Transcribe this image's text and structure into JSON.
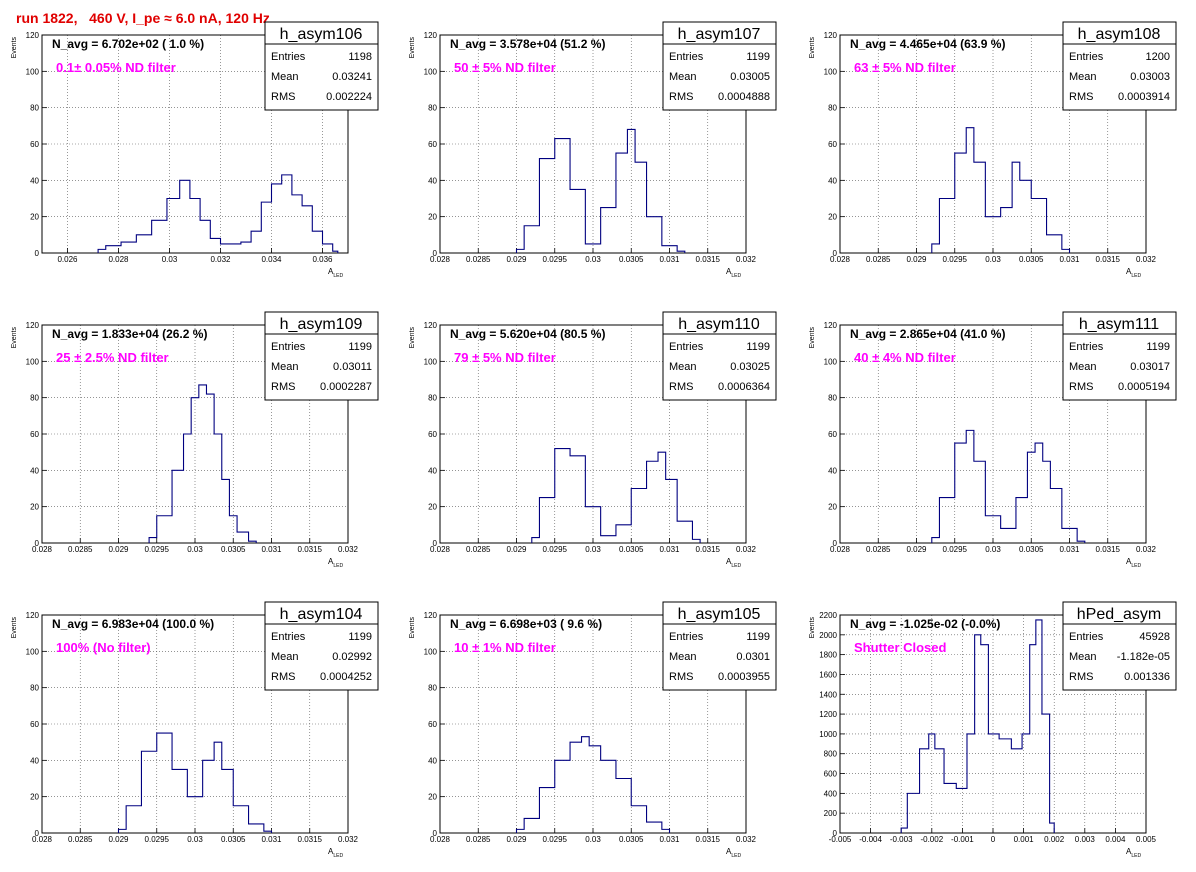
{
  "header": "run 1822,   460 V, I_pe ≈ 6.0 nA, 120 Hz",
  "colors": {
    "hist": "#000080",
    "title": "#e00000",
    "filter": "#ff00ff",
    "grid": "#555555"
  },
  "common": {
    "ylabel": "Events",
    "xlabel_main": "A",
    "xlabel_sub": "LED",
    "stat_labels": [
      "Entries",
      "Mean",
      "RMS"
    ]
  },
  "chart_data": [
    {
      "type": "histogram",
      "name": "h_asym106",
      "navg": "N_avg = 6.702e+02 ( 1.0 %)",
      "filter": "0.1± 0.05% ND filter",
      "entries": "1198",
      "mean": "0.03241",
      "rms": "0.002224",
      "xlim": [
        0.025,
        0.037
      ],
      "xticks": [
        0.026,
        0.028,
        0.03,
        0.032,
        0.034,
        0.036
      ],
      "xticklabels": [
        "0.026",
        "0.028",
        "0.03",
        "0.032",
        "0.034",
        "0.036"
      ],
      "ylim": [
        0,
        120
      ],
      "yticks": [
        0,
        20,
        40,
        60,
        80,
        100,
        120
      ],
      "yticklabels": [
        "0",
        "20",
        "40",
        "60",
        "80",
        "100",
        "120"
      ],
      "xlabel": "A_LED",
      "x": [
        0.0272,
        0.0278,
        0.0284,
        0.029,
        0.0296,
        0.0302,
        0.0306,
        0.031,
        0.0314,
        0.0318,
        0.0322,
        0.0326,
        0.033,
        0.0334,
        0.0338,
        0.0342,
        0.0346,
        0.035,
        0.0354,
        0.0358,
        0.0362,
        0.0366
      ],
      "y": [
        2,
        4,
        6,
        10,
        18,
        30,
        40,
        30,
        18,
        8,
        5,
        5,
        6,
        12,
        28,
        38,
        43,
        32,
        26,
        12,
        5,
        1
      ]
    },
    {
      "type": "histogram",
      "name": "h_asym107",
      "navg": "N_avg = 3.578e+04 (51.2 %)",
      "filter": "50 ± 5% ND filter",
      "entries": "1199",
      "mean": "0.03005",
      "rms": "0.0004888",
      "xlim": [
        0.028,
        0.032
      ],
      "xticks": [
        0.028,
        0.0285,
        0.029,
        0.0295,
        0.03,
        0.0305,
        0.031,
        0.0315,
        0.032
      ],
      "xticklabels": [
        "0.028",
        "0.0285",
        "0.029",
        "0.0295",
        "0.03",
        "0.0305",
        "0.031",
        "0.0315",
        "0.032"
      ],
      "ylim": [
        0,
        120
      ],
      "yticks": [
        0,
        20,
        40,
        60,
        80,
        100,
        120
      ],
      "yticklabels": [
        "0",
        "20",
        "40",
        "60",
        "80",
        "100",
        "120"
      ],
      "xlabel": "A_LED",
      "x": [
        0.029,
        0.0292,
        0.0294,
        0.0296,
        0.0298,
        0.03,
        0.0302,
        0.0304,
        0.0305,
        0.0306,
        0.0308,
        0.031,
        0.0312
      ],
      "y": [
        2,
        15,
        52,
        63,
        35,
        5,
        25,
        55,
        68,
        50,
        20,
        4,
        1
      ]
    },
    {
      "type": "histogram",
      "name": "h_asym108",
      "navg": "N_avg = 4.465e+04 (63.9 %)",
      "filter": "63 ± 5% ND filter",
      "entries": "1200",
      "mean": "0.03003",
      "rms": "0.0003914",
      "xlim": [
        0.028,
        0.032
      ],
      "xticks": [
        0.028,
        0.0285,
        0.029,
        0.0295,
        0.03,
        0.0305,
        0.031,
        0.0315,
        0.032
      ],
      "xticklabels": [
        "0.028",
        "0.0285",
        "0.029",
        "0.0295",
        "0.03",
        "0.0305",
        "0.031",
        "0.0315",
        "0.032"
      ],
      "ylim": [
        0,
        120
      ],
      "yticks": [
        0,
        20,
        40,
        60,
        80,
        100,
        120
      ],
      "yticklabels": [
        "0",
        "20",
        "40",
        "60",
        "80",
        "100",
        "120"
      ],
      "xlabel": "A_LED",
      "x": [
        0.0292,
        0.0294,
        0.0296,
        0.0297,
        0.0298,
        0.03,
        0.0302,
        0.0303,
        0.0304,
        0.0306,
        0.0308,
        0.031
      ],
      "y": [
        5,
        30,
        55,
        69,
        50,
        20,
        25,
        50,
        40,
        30,
        10,
        2
      ]
    },
    {
      "type": "histogram",
      "name": "h_asym109",
      "navg": "N_avg = 1.833e+04 (26.2 %)",
      "filter": "25 ± 2.5% ND filter",
      "entries": "1199",
      "mean": "0.03011",
      "rms": "0.0002287",
      "xlim": [
        0.028,
        0.032
      ],
      "xticks": [
        0.028,
        0.0285,
        0.029,
        0.0295,
        0.03,
        0.0305,
        0.031,
        0.0315,
        0.032
      ],
      "xticklabels": [
        "0.028",
        "0.0285",
        "0.029",
        "0.0295",
        "0.03",
        "0.0305",
        "0.031",
        "0.0315",
        "0.032"
      ],
      "ylim": [
        0,
        120
      ],
      "yticks": [
        0,
        20,
        40,
        60,
        80,
        100,
        120
      ],
      "yticklabels": [
        "0",
        "20",
        "40",
        "60",
        "80",
        "100",
        "120"
      ],
      "xlabel": "A_LED",
      "x": [
        0.0294,
        0.0296,
        0.0298,
        0.0299,
        0.03,
        0.0301,
        0.0302,
        0.0303,
        0.0304,
        0.0305,
        0.0306,
        0.0308
      ],
      "y": [
        3,
        15,
        40,
        60,
        80,
        87,
        82,
        60,
        35,
        15,
        6,
        1
      ]
    },
    {
      "type": "histogram",
      "name": "h_asym110",
      "navg": "N_avg = 5.620e+04 (80.5 %)",
      "filter": "79 ± 5% ND filter",
      "entries": "1199",
      "mean": "0.03025",
      "rms": "0.0006364",
      "xlim": [
        0.028,
        0.032
      ],
      "xticks": [
        0.028,
        0.0285,
        0.029,
        0.0295,
        0.03,
        0.0305,
        0.031,
        0.0315,
        0.032
      ],
      "xticklabels": [
        "0.028",
        "0.0285",
        "0.029",
        "0.0295",
        "0.03",
        "0.0305",
        "0.031",
        "0.0315",
        "0.032"
      ],
      "ylim": [
        0,
        120
      ],
      "yticks": [
        0,
        20,
        40,
        60,
        80,
        100,
        120
      ],
      "yticklabels": [
        "0",
        "20",
        "40",
        "60",
        "80",
        "100",
        "120"
      ],
      "xlabel": "A_LED",
      "x": [
        0.0292,
        0.0294,
        0.0296,
        0.0298,
        0.03,
        0.0302,
        0.0304,
        0.0306,
        0.0308,
        0.0309,
        0.031,
        0.0312,
        0.0314
      ],
      "y": [
        3,
        25,
        52,
        48,
        20,
        4,
        10,
        30,
        45,
        50,
        35,
        12,
        2
      ]
    },
    {
      "type": "histogram",
      "name": "h_asym111",
      "navg": "N_avg = 2.865e+04 (41.0 %)",
      "filter": "40 ± 4% ND filter",
      "entries": "1199",
      "mean": "0.03017",
      "rms": "0.0005194",
      "xlim": [
        0.028,
        0.032
      ],
      "xticks": [
        0.028,
        0.0285,
        0.029,
        0.0295,
        0.03,
        0.0305,
        0.031,
        0.0315,
        0.032
      ],
      "xticklabels": [
        "0.028",
        "0.0285",
        "0.029",
        "0.0295",
        "0.03",
        "0.0305",
        "0.031",
        "0.0315",
        "0.032"
      ],
      "ylim": [
        0,
        120
      ],
      "yticks": [
        0,
        20,
        40,
        60,
        80,
        100,
        120
      ],
      "yticklabels": [
        "0",
        "20",
        "40",
        "60",
        "80",
        "100",
        "120"
      ],
      "xlabel": "A_LED",
      "x": [
        0.0292,
        0.0294,
        0.0296,
        0.0297,
        0.0298,
        0.03,
        0.0302,
        0.0304,
        0.0305,
        0.0306,
        0.0307,
        0.0308,
        0.031,
        0.0312
      ],
      "y": [
        3,
        25,
        55,
        62,
        45,
        15,
        8,
        25,
        50,
        55,
        45,
        30,
        8,
        1
      ]
    },
    {
      "type": "histogram",
      "name": "h_asym104",
      "navg": "N_avg = 6.983e+04 (100.0 %)",
      "filter": "100% (No filter)",
      "entries": "1199",
      "mean": "0.02992",
      "rms": "0.0004252",
      "xlim": [
        0.028,
        0.032
      ],
      "xticks": [
        0.028,
        0.0285,
        0.029,
        0.0295,
        0.03,
        0.0305,
        0.031,
        0.0315,
        0.032
      ],
      "xticklabels": [
        "0.028",
        "0.0285",
        "0.029",
        "0.0295",
        "0.03",
        "0.0305",
        "0.031",
        "0.0315",
        "0.032"
      ],
      "ylim": [
        0,
        120
      ],
      "yticks": [
        0,
        20,
        40,
        60,
        80,
        100,
        120
      ],
      "yticklabels": [
        "0",
        "20",
        "40",
        "60",
        "80",
        "100",
        "120"
      ],
      "xlabel": "A_LED",
      "x": [
        0.029,
        0.0292,
        0.0294,
        0.0296,
        0.0298,
        0.03,
        0.0302,
        0.0303,
        0.0304,
        0.0306,
        0.0308,
        0.031
      ],
      "y": [
        2,
        15,
        45,
        55,
        35,
        20,
        40,
        50,
        35,
        15,
        5,
        1
      ]
    },
    {
      "type": "histogram",
      "name": "h_asym105",
      "navg": "N_avg = 6.698e+03 ( 9.6 %)",
      "filter": "10 ± 1% ND filter",
      "entries": "1199",
      "mean": "0.0301",
      "rms": "0.0003955",
      "xlim": [
        0.028,
        0.032
      ],
      "xticks": [
        0.028,
        0.0285,
        0.029,
        0.0295,
        0.03,
        0.0305,
        0.031,
        0.0315,
        0.032
      ],
      "xticklabels": [
        "0.028",
        "0.0285",
        "0.029",
        "0.0295",
        "0.03",
        "0.0305",
        "0.031",
        "0.0315",
        "0.032"
      ],
      "ylim": [
        0,
        120
      ],
      "yticks": [
        0,
        20,
        40,
        60,
        80,
        100,
        120
      ],
      "yticklabels": [
        "0",
        "20",
        "40",
        "60",
        "80",
        "100",
        "120"
      ],
      "xlabel": "A_LED",
      "x": [
        0.029,
        0.0292,
        0.0294,
        0.0296,
        0.0298,
        0.0299,
        0.03,
        0.0302,
        0.0304,
        0.0306,
        0.0308,
        0.031
      ],
      "y": [
        2,
        8,
        25,
        40,
        50,
        53,
        48,
        40,
        30,
        15,
        6,
        2
      ]
    },
    {
      "type": "histogram",
      "name": "hPed_asym",
      "navg": "N_avg = -1.025e-02 (-0.0%)",
      "filter": "Shutter Closed",
      "entries": "45928",
      "mean": "-1.182e-05",
      "rms": "0.001336",
      "xlim": [
        -0.005,
        0.005
      ],
      "xticks": [
        -0.005,
        -0.004,
        -0.003,
        -0.002,
        -0.001,
        0,
        0.001,
        0.002,
        0.003,
        0.004,
        0.005
      ],
      "xticklabels": [
        "-0.005",
        "-0.004",
        "-0.003",
        "-0.002",
        "-0.001",
        "0",
        "0.001",
        "0.002",
        "0.003",
        "0.004",
        "0.005"
      ],
      "ylim": [
        0,
        2200
      ],
      "yticks": [
        0,
        200,
        400,
        600,
        800,
        1000,
        1200,
        1400,
        1600,
        1800,
        2000,
        2200
      ],
      "yticklabels": [
        "0",
        "200",
        "400",
        "600",
        "800",
        "1000",
        "1200",
        "1400",
        "1600",
        "1800",
        "2000",
        "2200"
      ],
      "xlabel": "A_LED",
      "x": [
        -0.003,
        -0.0026,
        -0.0022,
        -0.002,
        -0.0018,
        -0.0014,
        -0.001,
        -0.0007,
        -0.0005,
        -0.0003,
        0.0,
        0.0004,
        0.0008,
        0.0011,
        0.0013,
        0.0015,
        0.0017,
        0.002
      ],
      "y": [
        50,
        400,
        850,
        1000,
        850,
        500,
        450,
        1000,
        2000,
        1900,
        1000,
        950,
        850,
        1000,
        1900,
        2150,
        1200,
        100
      ]
    }
  ]
}
